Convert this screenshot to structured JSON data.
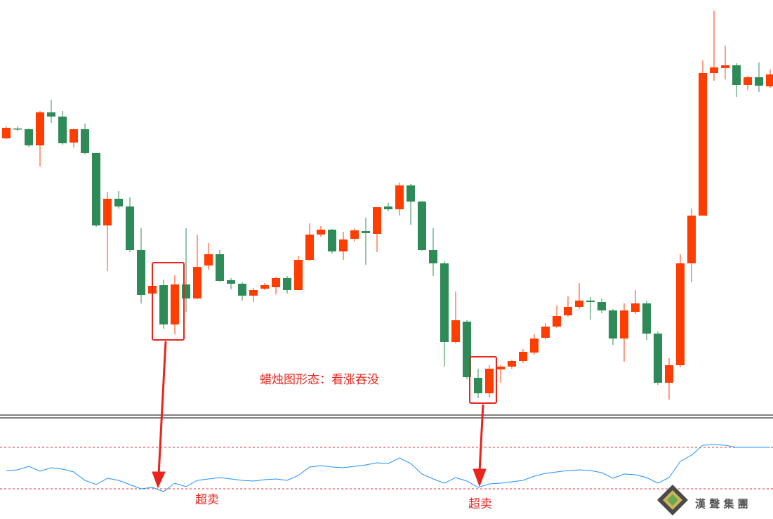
{
  "chart_data": [
    {
      "type": "candlestick",
      "up_color": "#ff3d00",
      "down_color": "#2e8b57",
      "ylim": [
        10,
        600
      ],
      "open": [
        403,
        417,
        416,
        393,
        440,
        434,
        397,
        416,
        382,
        279,
        317,
        306,
        244,
        182,
        194,
        138,
        195,
        175,
        222,
        238,
        201,
        196,
        179,
        189,
        191,
        204,
        187,
        230,
        266,
        273,
        242,
        260,
        271,
        267,
        306,
        302,
        336,
        313,
        244,
        225,
        113,
        142,
        62,
        40,
        74,
        78,
        86,
        98,
        119,
        135,
        151,
        163,
        172,
        170,
        158,
        118,
        156,
        168,
        125,
        55,
        80,
        225,
        293,
        496,
        503,
        507,
        479,
        490,
        477
      ],
      "high": [
        420,
        420,
        417,
        442,
        458,
        442,
        417,
        424,
        382,
        327,
        328,
        319,
        275,
        195,
        202,
        208,
        275,
        266,
        254,
        244,
        204,
        198,
        190,
        197,
        206,
        207,
        235,
        282,
        278,
        274,
        270,
        275,
        290,
        305,
        311,
        340,
        338,
        314,
        275,
        228,
        185,
        144,
        75,
        80,
        80,
        88,
        103,
        124,
        140,
        165,
        178,
        197,
        177,
        175,
        160,
        168,
        187,
        172,
        128,
        90,
        238,
        303,
        514,
        585,
        535,
        510,
        492,
        511,
        501
      ],
      "low": [
        402,
        413,
        391,
        363,
        425,
        394,
        390,
        380,
        277,
        214,
        303,
        241,
        168,
        180,
        132,
        124,
        156,
        174,
        216,
        199,
        188,
        172,
        170,
        187,
        181,
        182,
        187,
        228,
        263,
        239,
        230,
        256,
        223,
        241,
        299,
        293,
        280,
        243,
        207,
        78,
        111,
        60,
        33,
        34,
        55,
        75,
        83,
        95,
        117,
        133,
        149,
        160,
        145,
        154,
        109,
        85,
        153,
        116,
        52,
        31,
        77,
        198,
        293,
        485,
        487,
        462,
        472,
        469,
        475
      ],
      "close": [
        418,
        416,
        393,
        440,
        434,
        396,
        416,
        382,
        279,
        317,
        306,
        244,
        180,
        193,
        138,
        195,
        175,
        220,
        238,
        200,
        196,
        179,
        187,
        194,
        204,
        187,
        230,
        266,
        273,
        242,
        259,
        272,
        268,
        305,
        302,
        336,
        313,
        244,
        225,
        113,
        144,
        63,
        40,
        75,
        78,
        86,
        99,
        118,
        135,
        150,
        163,
        172,
        170,
        158,
        118,
        158,
        168,
        125,
        55,
        80,
        225,
        293,
        496,
        504,
        507,
        479,
        490,
        478,
        494
      ],
      "annotations": [
        "蜡烛图形态：看涨吞没",
        "超卖",
        "超卖"
      ]
    },
    {
      "type": "line",
      "ylim": [
        0,
        143
      ],
      "levels": [
        102,
        43
      ],
      "level_color": "#e0303a",
      "series": [
        {
          "color": "#1e90ff",
          "values": [
            69,
            70,
            75,
            68,
            73,
            71,
            67,
            55,
            49,
            58,
            55,
            49,
            43,
            45,
            39,
            51,
            46,
            55,
            57,
            59,
            57,
            55,
            54,
            56,
            57,
            55,
            62,
            74,
            76,
            74,
            73,
            75,
            77,
            80,
            79,
            87,
            79,
            64,
            57,
            51,
            59,
            54,
            45,
            50,
            51,
            53,
            55,
            61,
            65,
            67,
            69,
            70,
            69,
            66,
            58,
            64,
            63,
            59,
            51,
            59,
            82,
            91,
            105,
            106,
            105,
            102,
            102,
            102,
            102
          ]
        }
      ]
    }
  ],
  "logo": "漢 聲 集 團"
}
